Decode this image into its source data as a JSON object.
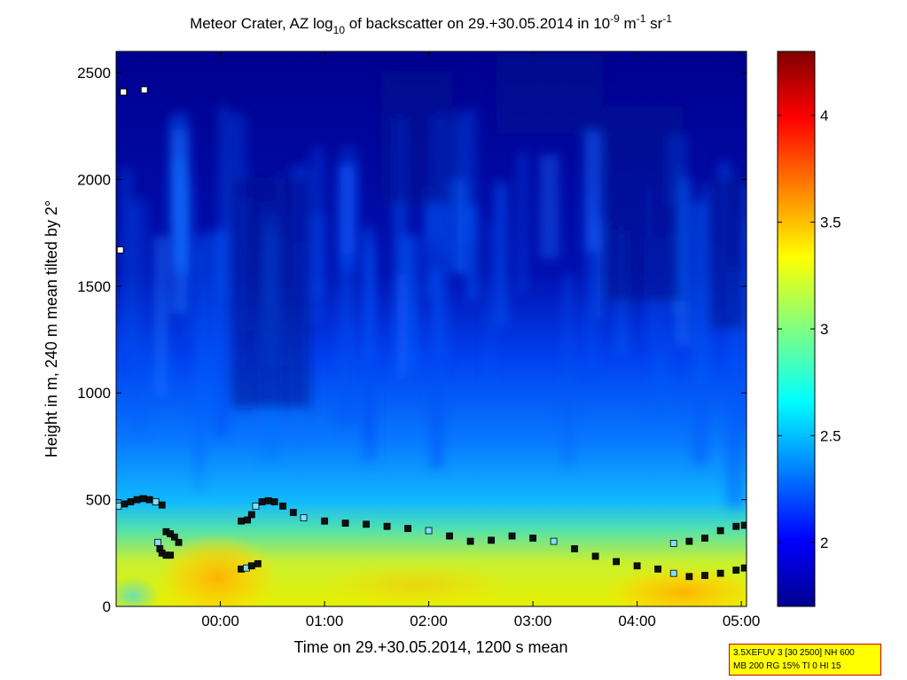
{
  "chart_data": {
    "type": "heatmap",
    "title": {
      "prefix": "Meteor Crater, AZ log",
      "sub": "10",
      "mid": " of backscatter on 29.+30.05.2014 in 10",
      "sup1": "-9",
      "mid2": " m",
      "sup2": "-1",
      "mid3": " sr",
      "sup3": "-1"
    },
    "xlabel": "Time on 29.+30.05.2014, 1200 s mean",
    "ylabel": "Height in m, 240 m mean tilted by 2°",
    "x_ticks": [
      "00:00",
      "01:00",
      "02:00",
      "03:00",
      "04:00",
      "05:00"
    ],
    "x_range_hours": [
      -1.0,
      5.05
    ],
    "ylim": [
      0,
      2600
    ],
    "y_ticks": [
      0,
      500,
      1000,
      1500,
      2000,
      2500
    ],
    "colorbar": {
      "range": [
        1.7,
        4.3
      ],
      "ticks": [
        2,
        2.5,
        3,
        3.5,
        4
      ],
      "colormap": "jet"
    },
    "field_description": {
      "near_surface_log10": [
        3.2,
        3.5
      ],
      "boundary_layer_top_m": 500,
      "free_troposphere_log10": [
        1.8,
        2.3
      ]
    },
    "layer_height_series": {
      "name": "",
      "points": [
        [
          -0.98,
          470
        ],
        [
          -0.92,
          480
        ],
        [
          -0.86,
          490
        ],
        [
          -0.8,
          500
        ],
        [
          -0.74,
          505
        ],
        [
          -0.68,
          500
        ],
        [
          -0.62,
          490
        ],
        [
          -0.56,
          475
        ],
        [
          -0.52,
          350
        ],
        [
          -0.48,
          340
        ],
        [
          -0.44,
          325
        ],
        [
          -0.4,
          300
        ],
        [
          -0.6,
          300
        ],
        [
          -0.58,
          270
        ],
        [
          -0.56,
          250
        ],
        [
          -0.52,
          240
        ],
        [
          -0.48,
          240
        ],
        [
          0.2,
          175
        ],
        [
          0.25,
          180
        ],
        [
          0.3,
          190
        ],
        [
          0.36,
          200
        ],
        [
          0.2,
          400
        ],
        [
          0.26,
          405
        ],
        [
          0.3,
          430
        ],
        [
          0.34,
          470
        ],
        [
          0.4,
          490
        ],
        [
          0.46,
          495
        ],
        [
          0.52,
          490
        ],
        [
          0.6,
          470
        ],
        [
          0.7,
          440
        ],
        [
          0.8,
          415
        ],
        [
          1.0,
          400
        ],
        [
          1.2,
          390
        ],
        [
          1.4,
          385
        ],
        [
          1.6,
          375
        ],
        [
          1.8,
          365
        ],
        [
          2.0,
          355
        ],
        [
          2.2,
          330
        ],
        [
          2.4,
          305
        ],
        [
          2.6,
          310
        ],
        [
          2.8,
          330
        ],
        [
          3.0,
          320
        ],
        [
          3.2,
          305
        ],
        [
          3.4,
          270
        ],
        [
          3.6,
          235
        ],
        [
          3.8,
          210
        ],
        [
          4.0,
          190
        ],
        [
          4.2,
          175
        ],
        [
          4.35,
          155
        ],
        [
          4.5,
          140
        ],
        [
          4.65,
          145
        ],
        [
          4.8,
          155
        ],
        [
          4.95,
          170
        ],
        [
          5.03,
          180
        ],
        [
          4.35,
          295
        ],
        [
          4.5,
          305
        ],
        [
          4.65,
          320
        ],
        [
          4.8,
          355
        ],
        [
          4.95,
          375
        ],
        [
          5.03,
          380
        ]
      ]
    }
  },
  "surface_markers": [
    [
      -0.93,
      2410
    ],
    [
      -0.73,
      2420
    ],
    [
      -0.96,
      1670
    ]
  ],
  "info": {
    "line1": "3.5XEFUV 3 [30 2500] NH 600",
    "line2": "MB 200 RG 15% TI 0 HI 15"
  }
}
